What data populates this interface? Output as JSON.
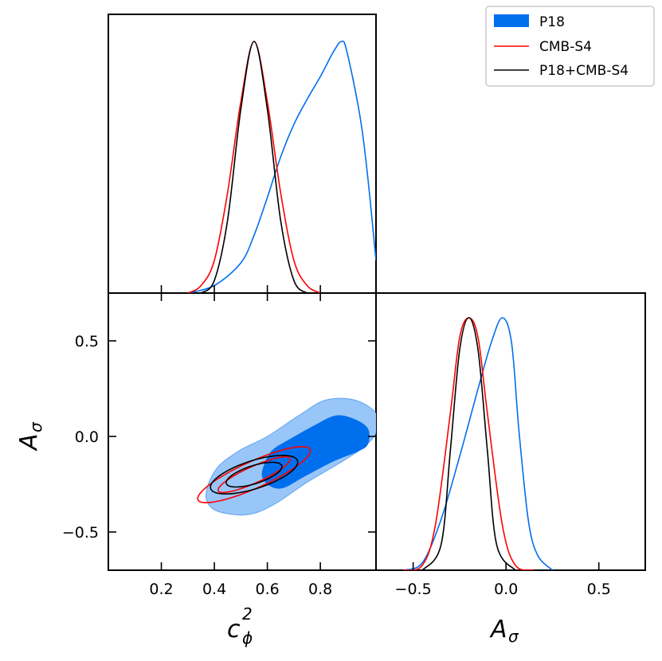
{
  "chart_data": {
    "type": "triangle-corner-plot",
    "colors": {
      "P18": "#006FED",
      "P18_fill_outer": "#99C6F8",
      "CMB-S4": "#ff0000",
      "P18+CMB-S4": "#000000"
    },
    "legend": {
      "placement": "top-right",
      "entries": [
        {
          "label": "P18",
          "style": "filled"
        },
        {
          "label": "CMB-S4",
          "style": "line"
        },
        {
          "label": "P18+CMB-S4",
          "style": "line"
        }
      ]
    },
    "parameters": [
      {
        "name": "c_phi^2",
        "label_main": "c",
        "label_sub": "ϕ",
        "label_sup": "2",
        "range": [
          0.0,
          1.01
        ],
        "ticks": [
          0.2,
          0.4,
          0.6,
          0.8
        ],
        "tick_labels": [
          "0.2",
          "0.4",
          "0.6",
          "0.8"
        ]
      },
      {
        "name": "A_sigma",
        "label_main": "A",
        "label_sub": "σ",
        "range": [
          -0.7,
          0.75
        ],
        "ticks": [
          -0.5,
          0.0,
          0.5
        ],
        "tick_labels": [
          "−0.5",
          "0.0",
          "0.5"
        ]
      }
    ],
    "marginal_c_phi2": {
      "series": [
        {
          "name": "P18",
          "points": [
            [
              0.3,
              0.0
            ],
            [
              0.4,
              0.03
            ],
            [
              0.5,
              0.12
            ],
            [
              0.55,
              0.23
            ],
            [
              0.6,
              0.38
            ],
            [
              0.65,
              0.54
            ],
            [
              0.7,
              0.67
            ],
            [
              0.75,
              0.77
            ],
            [
              0.8,
              0.86
            ],
            [
              0.85,
              0.96
            ],
            [
              0.88,
              1.0
            ],
            [
              0.9,
              0.96
            ],
            [
              0.95,
              0.7
            ],
            [
              0.98,
              0.45
            ],
            [
              1.01,
              0.13
            ]
          ]
        },
        {
          "name": "CMB-S4",
          "points": [
            [
              0.3,
              0.0
            ],
            [
              0.35,
              0.03
            ],
            [
              0.4,
              0.13
            ],
            [
              0.45,
              0.4
            ],
            [
              0.5,
              0.76
            ],
            [
              0.55,
              1.0
            ],
            [
              0.6,
              0.76
            ],
            [
              0.65,
              0.4
            ],
            [
              0.7,
              0.13
            ],
            [
              0.75,
              0.03
            ],
            [
              0.8,
              0.0
            ]
          ]
        },
        {
          "name": "P18+CMB-S4",
          "points": [
            [
              0.35,
              0.0
            ],
            [
              0.4,
              0.05
            ],
            [
              0.45,
              0.29
            ],
            [
              0.5,
              0.73
            ],
            [
              0.55,
              1.0
            ],
            [
              0.6,
              0.73
            ],
            [
              0.65,
              0.29
            ],
            [
              0.7,
              0.05
            ],
            [
              0.75,
              0.0
            ]
          ]
        }
      ]
    },
    "marginal_A_sigma": {
      "series": [
        {
          "name": "P18",
          "points": [
            [
              -0.55,
              0.0
            ],
            [
              -0.45,
              0.03
            ],
            [
              -0.35,
              0.2
            ],
            [
              -0.25,
              0.45
            ],
            [
              -0.15,
              0.72
            ],
            [
              -0.08,
              0.9
            ],
            [
              -0.02,
              1.0
            ],
            [
              0.03,
              0.9
            ],
            [
              0.07,
              0.55
            ],
            [
              0.12,
              0.2
            ],
            [
              0.17,
              0.06
            ],
            [
              0.25,
              0.0
            ]
          ]
        },
        {
          "name": "CMB-S4",
          "points": [
            [
              -0.55,
              0.0
            ],
            [
              -0.45,
              0.02
            ],
            [
              -0.38,
              0.18
            ],
            [
              -0.3,
              0.62
            ],
            [
              -0.25,
              0.92
            ],
            [
              -0.2,
              1.0
            ],
            [
              -0.15,
              0.92
            ],
            [
              -0.1,
              0.62
            ],
            [
              -0.02,
              0.18
            ],
            [
              0.05,
              0.02
            ],
            [
              0.15,
              0.0
            ]
          ]
        },
        {
          "name": "P18+CMB-S4",
          "points": [
            [
              -0.45,
              0.0
            ],
            [
              -0.35,
              0.1
            ],
            [
              -0.3,
              0.47
            ],
            [
              -0.25,
              0.87
            ],
            [
              -0.2,
              1.0
            ],
            [
              -0.15,
              0.87
            ],
            [
              -0.1,
              0.47
            ],
            [
              -0.05,
              0.1
            ],
            [
              0.05,
              0.0
            ]
          ]
        }
      ]
    },
    "joint_contours": [
      {
        "name": "P18",
        "level": "95%",
        "style": "filled-light",
        "points": [
          [
            0.41,
            -0.39
          ],
          [
            0.52,
            -0.41
          ],
          [
            0.62,
            -0.36
          ],
          [
            0.75,
            -0.24
          ],
          [
            0.86,
            -0.15
          ],
          [
            0.96,
            -0.06
          ],
          [
            1.01,
            0.02
          ],
          [
            1.01,
            0.12
          ],
          [
            0.93,
            0.19
          ],
          [
            0.82,
            0.19
          ],
          [
            0.72,
            0.11
          ],
          [
            0.6,
            0.0
          ],
          [
            0.5,
            -0.07
          ],
          [
            0.42,
            -0.15
          ],
          [
            0.38,
            -0.24
          ],
          [
            0.37,
            -0.33
          ]
        ]
      },
      {
        "name": "P18",
        "level": "68%",
        "style": "filled-dark",
        "points": [
          [
            0.61,
            -0.26
          ],
          [
            0.66,
            -0.27
          ],
          [
            0.74,
            -0.21
          ],
          [
            0.85,
            -0.13
          ],
          [
            0.94,
            -0.08
          ],
          [
            0.98,
            -0.04
          ],
          [
            0.98,
            0.04
          ],
          [
            0.93,
            0.09
          ],
          [
            0.86,
            0.11
          ],
          [
            0.78,
            0.06
          ],
          [
            0.69,
            -0.01
          ],
          [
            0.62,
            -0.07
          ],
          [
            0.59,
            -0.14
          ],
          [
            0.58,
            -0.21
          ]
        ]
      },
      {
        "name": "CMB-S4",
        "level": "95%",
        "center": [
          0.55,
          -0.2
        ],
        "a": 0.25,
        "b": 0.065,
        "angle_deg": 33
      },
      {
        "name": "CMB-S4",
        "level": "68%",
        "center": [
          0.55,
          -0.2
        ],
        "a": 0.16,
        "b": 0.04,
        "angle_deg": 33
      },
      {
        "name": "P18+CMB-S4",
        "level": "95%",
        "center": [
          0.55,
          -0.2
        ],
        "a": 0.18,
        "b": 0.07,
        "angle_deg": 26
      },
      {
        "name": "P18+CMB-S4",
        "level": "68%",
        "center": [
          0.55,
          -0.2
        ],
        "a": 0.115,
        "b": 0.045,
        "angle_deg": 26
      }
    ]
  }
}
